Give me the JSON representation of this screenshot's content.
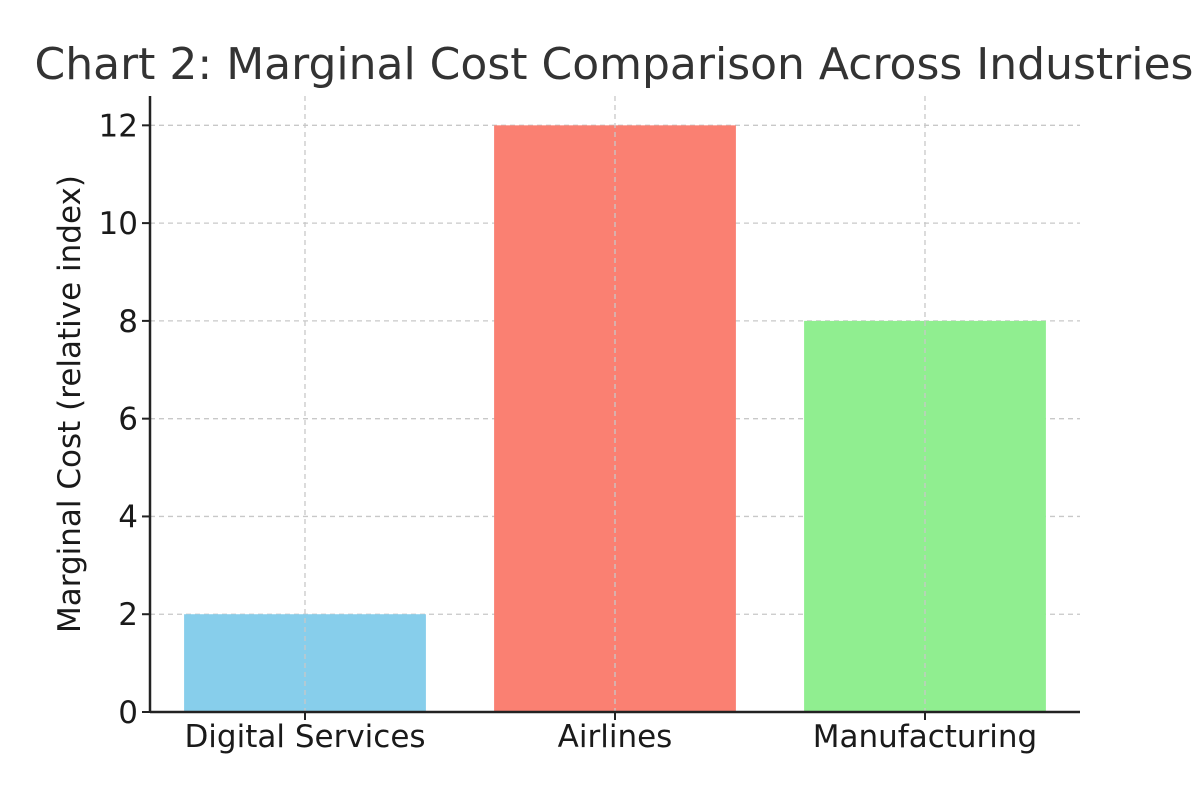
{
  "chart_data": {
    "type": "bar",
    "title": "Chart 2: Marginal Cost Comparison Across Industries",
    "xlabel": "",
    "ylabel": "Marginal Cost (relative index)",
    "categories": [
      "Digital Services",
      "Airlines",
      "Manufacturing"
    ],
    "values": [
      2,
      12,
      8
    ],
    "colors": [
      "#87ceeb",
      "#fa8072",
      "#90ee90"
    ],
    "ylim": [
      0,
      12.6
    ],
    "yticks": [
      0,
      2,
      4,
      6,
      8,
      10,
      12
    ],
    "grid": true
  }
}
